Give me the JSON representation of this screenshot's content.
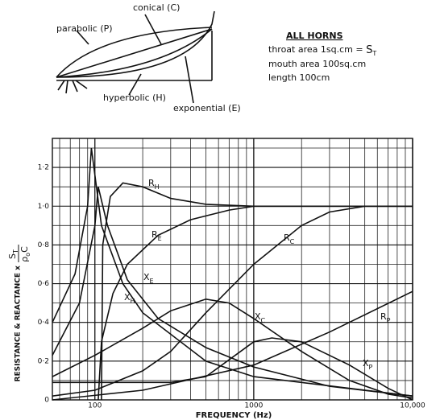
{
  "diagram": {
    "labels": [
      "conical (C)",
      "parabolic (P)",
      "hyperbolic (H)",
      "exponential (E)"
    ],
    "heading": "ALL HORNS",
    "throat": "throat area 1sq.cm =",
    "throat_symbol": [
      "S",
      "T"
    ],
    "mouth": "mouth area 100sq.cm",
    "length": "length 100cm"
  },
  "chart_data": {
    "type": "line",
    "xlabel": "FREQUENCY (Hz)",
    "ylabel": "RESISTANCE & REACTANCE x",
    "ylabel_fraction": {
      "numerator": [
        "S",
        "T"
      ],
      "denominator": [
        "ρ",
        "o",
        "C"
      ]
    },
    "xscale": "log",
    "xlim": [
      54,
      10000
    ],
    "ylim": [
      0,
      1.35
    ],
    "grid": true,
    "xticks": [
      100,
      1000,
      {
        "value": 10000,
        "label": "10,000"
      }
    ],
    "yticks": [
      0,
      {
        "value": 0.2,
        "label": "0·2"
      },
      {
        "value": 0.4,
        "label": "0·4"
      },
      {
        "value": 0.6,
        "label": "0·6"
      },
      {
        "value": 0.8,
        "label": "0·8"
      },
      {
        "value": 1.0,
        "label": "1·0"
      },
      {
        "value": 1.2,
        "label": "1·2"
      }
    ],
    "xgrid": [
      60,
      70,
      80,
      90,
      200,
      300,
      400,
      500,
      600,
      700,
      800,
      900,
      2000,
      3000,
      4000,
      5000,
      6000,
      7000,
      8000,
      9000
    ],
    "ygrid": [
      0.1,
      0.3,
      0.5,
      0.7,
      0.9,
      1.1,
      1.3
    ],
    "series": [
      {
        "name": "R",
        "subscript": "H",
        "color": "#111111",
        "x": [
          110,
          112,
          125,
          150,
          200,
          300,
          500,
          1000,
          10000
        ],
        "values": [
          0,
          0.8,
          1.05,
          1.12,
          1.1,
          1.04,
          1.01,
          1.0,
          1.0
        ]
      },
      {
        "name": "R",
        "subscript": "E",
        "color": "#111111",
        "x": [
          105,
          110,
          130,
          160,
          250,
          400,
          700,
          1000,
          10000
        ],
        "values": [
          0,
          0.3,
          0.55,
          0.7,
          0.85,
          0.93,
          0.98,
          1.0,
          1.0
        ]
      },
      {
        "name": "R",
        "subscript": "C",
        "color": "#111111",
        "x": [
          54,
          100,
          200,
          300,
          500,
          1000,
          2000,
          3000,
          5000,
          10000
        ],
        "values": [
          0.02,
          0.05,
          0.15,
          0.25,
          0.45,
          0.7,
          0.9,
          0.97,
          1.0,
          1.0
        ]
      },
      {
        "name": "X",
        "subscript": "E",
        "color": "#111111",
        "x": [
          54,
          80,
          100,
          105,
          120,
          160,
          250,
          500,
          1000,
          3000,
          10000
        ],
        "values": [
          0.23,
          0.5,
          0.9,
          1.1,
          0.9,
          0.62,
          0.42,
          0.27,
          0.17,
          0.07,
          0.02
        ]
      },
      {
        "name": "X",
        "subscript": "H",
        "color": "#111111",
        "x": [
          54,
          75,
          90,
          95,
          110,
          150,
          200,
          500,
          1000,
          10000
        ],
        "values": [
          0.4,
          0.65,
          1.0,
          1.3,
          0.9,
          0.6,
          0.45,
          0.2,
          0.12,
          0.02
        ]
      },
      {
        "name": "X",
        "subscript": "C",
        "color": "#111111",
        "x": [
          54,
          100,
          200,
          300,
          500,
          700,
          1000,
          2000,
          4000,
          7000,
          10000
        ],
        "values": [
          0.12,
          0.23,
          0.37,
          0.46,
          0.52,
          0.5,
          0.42,
          0.25,
          0.1,
          0.03,
          0.01
        ]
      },
      {
        "name": "R",
        "subscript": "P",
        "color": "#111111",
        "x": [
          54,
          200,
          1000,
          3000,
          10000
        ],
        "values": [
          0,
          0.05,
          0.18,
          0.35,
          0.56
        ]
      },
      {
        "name": "X",
        "subscript": "P",
        "color": "#111111",
        "x": [
          54,
          300,
          500,
          1000,
          1300,
          2000,
          4000,
          7000,
          10000
        ],
        "values": [
          0.09,
          0.09,
          0.12,
          0.3,
          0.32,
          0.3,
          0.18,
          0.06,
          0
        ]
      }
    ]
  }
}
